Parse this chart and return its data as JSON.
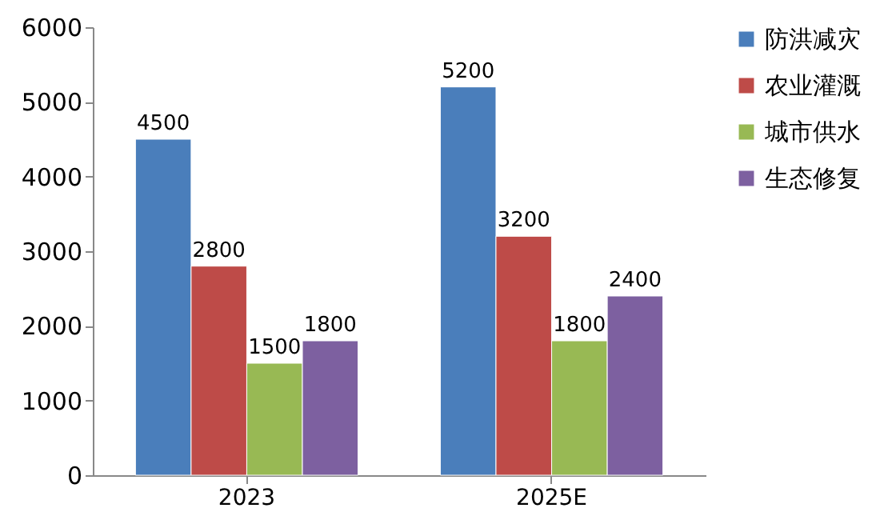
{
  "chart_data": {
    "type": "bar",
    "categories": [
      "2023",
      "2025E"
    ],
    "series": [
      {
        "name": "防洪减灾",
        "color": "#4a7ebb",
        "values": [
          4500,
          5200
        ]
      },
      {
        "name": "农业灌溉",
        "color": "#be4b48",
        "values": [
          2800,
          3200
        ]
      },
      {
        "name": "城市供水",
        "color": "#98b954",
        "values": [
          1500,
          1800
        ]
      },
      {
        "name": "生态修复",
        "color": "#7d60a0",
        "values": [
          1800,
          2400
        ]
      }
    ],
    "ylim": [
      0,
      6000
    ],
    "yticks": [
      0,
      1000,
      2000,
      3000,
      4000,
      5000,
      6000
    ],
    "grid": false,
    "legend": "right",
    "data_labels": true
  }
}
